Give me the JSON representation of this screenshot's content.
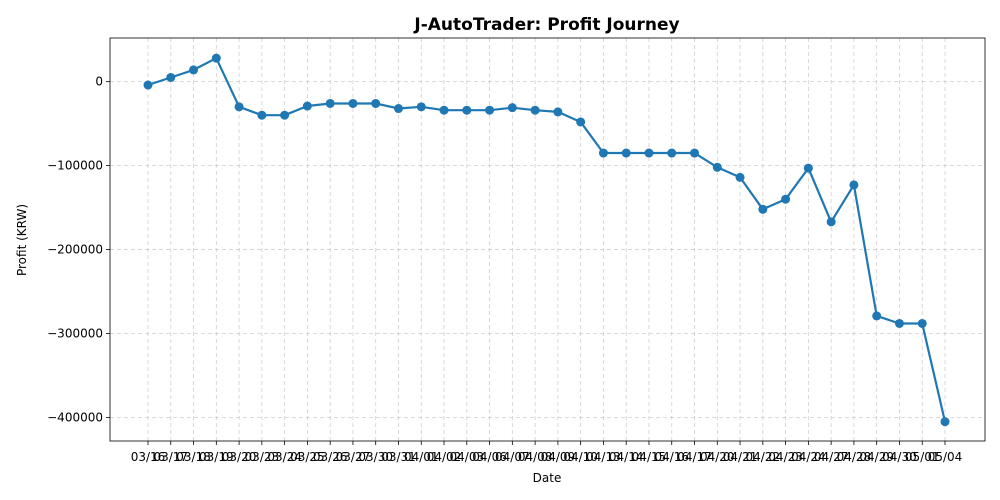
{
  "chart_data": {
    "type": "line",
    "title": "J-AutoTrader: Profit Journey",
    "xlabel": "Date",
    "ylabel": "Profit (KRW)",
    "grid": true,
    "line_color": "#1f77b4",
    "x": [
      "03/16",
      "03/17",
      "03/18",
      "03/19",
      "03/20",
      "03/23",
      "03/24",
      "03/25",
      "03/26",
      "03/27",
      "03/30",
      "03/31",
      "04/01",
      "04/02",
      "04/03",
      "04/06",
      "04/07",
      "04/08",
      "04/09",
      "04/10",
      "04/13",
      "04/14",
      "04/15",
      "04/16",
      "04/17",
      "04/20",
      "04/21",
      "04/22",
      "04/23",
      "04/24",
      "04/27",
      "04/28",
      "04/29",
      "04/30",
      "05/01",
      "05/04"
    ],
    "values": [
      -4000,
      5000,
      14000,
      28000,
      -30000,
      -40000,
      -40000,
      -29000,
      -26000,
      -26000,
      -26000,
      -32000,
      -30000,
      -34000,
      -34000,
      -34000,
      -31000,
      -34000,
      -36000,
      -48000,
      -85000,
      -85000,
      -85000,
      -85000,
      -85000,
      -102000,
      -114000,
      -152000,
      -140000,
      -103000,
      -167000,
      -123000,
      -279000,
      -288000,
      -288000,
      -405000
    ],
    "yticks": [
      0,
      -100000,
      -200000,
      -300000,
      -400000
    ],
    "ytick_labels": [
      "0",
      "−100000",
      "−200000",
      "−300000",
      "−400000"
    ],
    "ylim": [
      -428000,
      52000
    ]
  }
}
